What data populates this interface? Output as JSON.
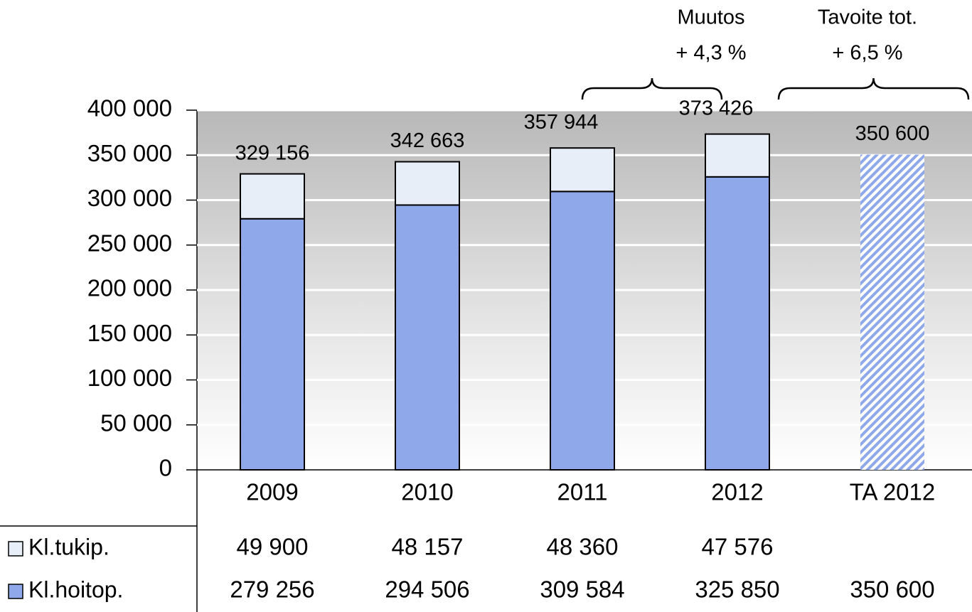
{
  "chart_data": {
    "type": "bar",
    "stacked": true,
    "categories": [
      "2009",
      "2010",
      "2011",
      "2012",
      "TA 2012"
    ],
    "series": [
      {
        "name": "Kl.hoitop.",
        "color": "#8fa8ea",
        "values": [
          279256,
          294506,
          309584,
          325850,
          350600
        ],
        "value_labels": [
          "279 256",
          "294 506",
          "309 584",
          "325 850",
          "350 600"
        ],
        "hatch": [
          false,
          false,
          false,
          false,
          true
        ]
      },
      {
        "name": "Kl.tukip.",
        "color": "#e8eef8",
        "values": [
          49900,
          48157,
          48360,
          47576,
          null
        ],
        "value_labels": [
          "49 900",
          "48 157",
          "48 360",
          "47 576",
          null
        ],
        "hatch": [
          false,
          false,
          false,
          false,
          false
        ]
      }
    ],
    "totals": [
      329156,
      342663,
      357944,
      373426,
      350600
    ],
    "total_labels": [
      "329 156",
      "342 663",
      "357 944",
      "373 426",
      "350 600"
    ],
    "ylim": [
      0,
      400000
    ],
    "yticks": [
      0,
      {
        "value": 50000,
        "label": "50 000"
      },
      {
        "value": 100000,
        "label": "100 000"
      },
      {
        "value": 150000,
        "label": "150 000"
      },
      {
        "value": 200000,
        "label": "200 000"
      },
      {
        "value": 250000,
        "label": "250 000"
      },
      {
        "value": 300000,
        "label": "300 000"
      },
      {
        "value": 350000,
        "label": "350 000"
      },
      {
        "value": 400000,
        "label": "400 000"
      }
    ],
    "grid": true,
    "annotations": [
      {
        "text": "Muutos",
        "detail": "+ 4,3 %",
        "from": 2,
        "to": 3
      },
      {
        "text": "Tavoite tot.",
        "detail": "+ 6,5 %",
        "from": 3,
        "to": 4
      }
    ]
  }
}
